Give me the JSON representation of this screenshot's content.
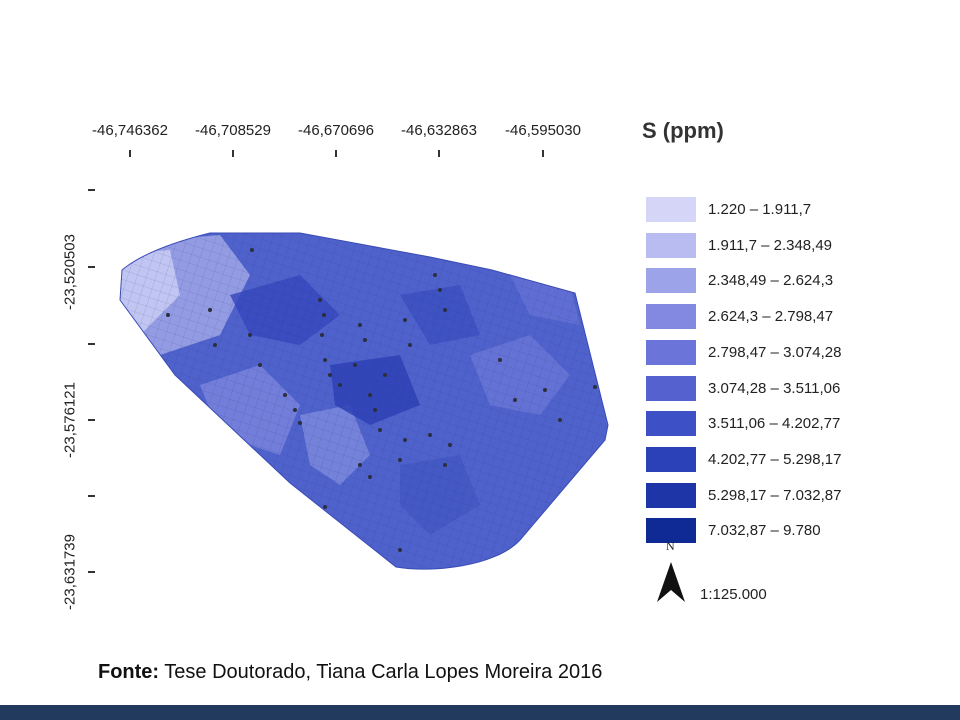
{
  "map": {
    "longitude_labels": [
      "-46,746362",
      "-46,708529",
      "-46,670696",
      "-46,632863",
      "-46,595030"
    ],
    "latitude_labels": [
      "-23,520503",
      "-23,576121",
      "-23,631739"
    ],
    "fill_color": "#4a5fcc",
    "samples_color": "#2b2f3e"
  },
  "legend": {
    "title": "S (ppm)",
    "classes": [
      {
        "label": "1.220 – 1.911,7",
        "color": "#d5d6f7"
      },
      {
        "label": "1.911,7 – 2.348,49",
        "color": "#b8bcf0"
      },
      {
        "label": "2.348,49 – 2.624,3",
        "color": "#9da3e9"
      },
      {
        "label": "2.624,3 – 2.798,47",
        "color": "#8389e0"
      },
      {
        "label": "2.798,47 – 3.074,28",
        "color": "#6b74d8"
      },
      {
        "label": "3.074,28 – 3.511,06",
        "color": "#5461cf"
      },
      {
        "label": "3.511,06 – 4.202,77",
        "color": "#3e50c6"
      },
      {
        "label": "4.202,77 – 5.298,17",
        "color": "#2b41b8"
      },
      {
        "label": "5.298,17 – 7.032,87",
        "color": "#1d35a6"
      },
      {
        "label": "7.032,87 – 9.780",
        "color": "#0f2a94"
      }
    ],
    "north_label": "N",
    "scale": "1:125.000"
  },
  "source": {
    "label": "Fonte:",
    "text": " Tese Doutorado, Tiana Carla Lopes Moreira 2016"
  },
  "theme": {
    "footer_color": "#223a5e"
  }
}
